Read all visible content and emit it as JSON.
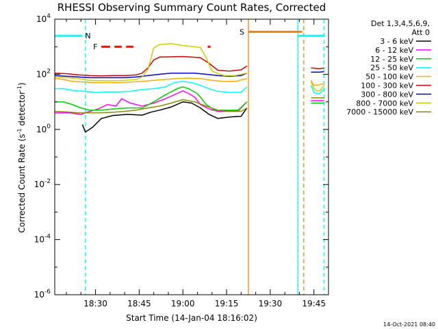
{
  "chart_data": {
    "type": "line",
    "title": "RHESSI Observing Summary Count Rates, Corrected",
    "xlabel": "Start Time (14-Jan-04 18:16:02)",
    "ylabel": "Corrected Count Rate (s⁻¹ detector⁻¹)",
    "ylabel_parts": [
      "Corrected Count Rate (s",
      "-1",
      " detector",
      "-1",
      ")"
    ],
    "x_unit": "minutes after 18:16:02 UT",
    "xlim": [
      0,
      94
    ],
    "ylim": [
      1e-06,
      10000.0
    ],
    "y_scale": "log",
    "x_ticks": [
      {
        "value": 14,
        "label": "18:30"
      },
      {
        "value": 29,
        "label": "18:45"
      },
      {
        "value": 44,
        "label": "19:00"
      },
      {
        "value": 59,
        "label": "19:15"
      },
      {
        "value": 74,
        "label": "19:30"
      },
      {
        "value": 89,
        "label": "19:45"
      }
    ],
    "y_ticks": [
      {
        "value": 10000.0,
        "base": "10",
        "exp": "4"
      },
      {
        "value": 100.0,
        "base": "10",
        "exp": "2"
      },
      {
        "value": 1.0,
        "base": "10",
        "exp": "0"
      },
      {
        "value": 0.01,
        "base": "10",
        "exp": "-2"
      },
      {
        "value": 0.0001,
        "base": "10",
        "exp": "-4"
      },
      {
        "value": 1e-06,
        "base": "10",
        "exp": "-6"
      }
    ],
    "legend_header": [
      "Det 1,3,4,5,6,9,",
      "Att 0"
    ],
    "legend_position": "right",
    "series": [
      {
        "name": "3 - 6 keV",
        "color": "#000000",
        "segments": [
          [
            [
              9.5,
              1.5
            ],
            [
              10.5,
              0.8
            ],
            [
              13,
              1.2
            ],
            [
              16,
              2.5
            ],
            [
              20,
              3.2
            ],
            [
              25,
              3.5
            ],
            [
              30,
              3.3
            ],
            [
              33,
              4.2
            ],
            [
              36,
              5
            ],
            [
              40,
              6.5
            ],
            [
              44,
              10
            ],
            [
              47,
              9
            ],
            [
              50,
              6
            ],
            [
              53,
              3.5
            ],
            [
              56,
              2.5
            ],
            [
              60,
              2.8
            ],
            [
              64,
              3
            ],
            [
              66,
              6
            ]
          ]
        ]
      },
      {
        "name": "6 - 12 keV",
        "color": "#ff00ff",
        "segments": [
          [
            [
              0,
              4
            ],
            [
              5,
              4
            ],
            [
              9,
              3.5
            ],
            [
              12,
              4.5
            ],
            [
              15,
              5.5
            ],
            [
              18,
              8
            ],
            [
              21,
              7
            ],
            [
              23,
              13
            ],
            [
              26,
              9
            ],
            [
              30,
              7
            ],
            [
              34,
              9
            ],
            [
              38,
              13
            ],
            [
              42,
              20
            ],
            [
              44,
              25
            ],
            [
              46,
              20
            ],
            [
              48,
              15
            ],
            [
              50,
              8
            ],
            [
              53,
              5.5
            ],
            [
              56,
              4.5
            ],
            [
              60,
              4.5
            ],
            [
              63,
              4.7
            ],
            [
              66,
              10
            ]
          ],
          [
            [
              88,
              11
            ],
            [
              91,
              11
            ],
            [
              92.5,
              11
            ]
          ]
        ]
      },
      {
        "name": "12 - 25 keV",
        "color": "#00cc00",
        "segments": [
          [
            [
              0,
              10
            ],
            [
              3,
              10
            ],
            [
              6,
              8
            ],
            [
              9,
              6
            ],
            [
              12,
              5
            ],
            [
              16,
              5
            ],
            [
              20,
              5.5
            ],
            [
              25,
              6
            ],
            [
              30,
              6
            ],
            [
              34,
              10
            ],
            [
              38,
              18
            ],
            [
              42,
              30
            ],
            [
              44,
              35
            ],
            [
              46,
              30
            ],
            [
              49,
              20
            ],
            [
              52,
              8
            ],
            [
              55,
              5
            ],
            [
              59,
              5
            ],
            [
              63,
              5
            ],
            [
              66,
              10
            ]
          ],
          [
            [
              88,
              9
            ],
            [
              91,
              9
            ],
            [
              92.5,
              9
            ]
          ]
        ]
      },
      {
        "name": "25 - 50 keV",
        "color": "#00ffff",
        "segments": [
          [
            [
              0,
              30
            ],
            [
              3,
              30
            ],
            [
              6,
              26
            ],
            [
              10,
              24
            ],
            [
              14,
              22
            ],
            [
              18,
              23
            ],
            [
              22,
              23
            ],
            [
              26,
              24
            ],
            [
              30,
              28
            ],
            [
              34,
              30
            ],
            [
              38,
              35
            ],
            [
              41,
              50
            ],
            [
              44,
              55
            ],
            [
              47,
              50
            ],
            [
              50,
              40
            ],
            [
              53,
              30
            ],
            [
              56,
              24
            ],
            [
              60,
              22
            ],
            [
              64,
              22
            ],
            [
              66,
              35
            ]
          ],
          [
            [
              88,
              40
            ],
            [
              89,
              22
            ],
            [
              90,
              20
            ],
            [
              91,
              20
            ],
            [
              92.5,
              30
            ]
          ]
        ]
      },
      {
        "name": "50 - 100 keV",
        "color": "#ffaa00",
        "segments": [
          [
            [
              0,
              70
            ],
            [
              3,
              65
            ],
            [
              6,
              55
            ],
            [
              10,
              52
            ],
            [
              14,
              50
            ],
            [
              18,
              50
            ],
            [
              22,
              50
            ],
            [
              26,
              52
            ],
            [
              30,
              55
            ],
            [
              34,
              60
            ],
            [
              38,
              65
            ],
            [
              42,
              70
            ],
            [
              46,
              72
            ],
            [
              50,
              70
            ],
            [
              54,
              60
            ],
            [
              58,
              55
            ],
            [
              62,
              55
            ],
            [
              66,
              70
            ]
          ],
          [
            [
              88,
              60
            ],
            [
              89,
              40
            ],
            [
              90,
              40
            ],
            [
              92.5,
              45
            ]
          ]
        ]
      },
      {
        "name": "100 - 300 keV",
        "color": "#cc0000",
        "segments": [
          [
            [
              0,
              110
            ],
            [
              4,
              105
            ],
            [
              8,
              95
            ],
            [
              12,
              90
            ],
            [
              16,
              88
            ],
            [
              20,
              90
            ],
            [
              24,
              90
            ],
            [
              28,
              95
            ],
            [
              30,
              110
            ],
            [
              32,
              170
            ],
            [
              34,
              330
            ],
            [
              36,
              420
            ],
            [
              40,
              430
            ],
            [
              44,
              440
            ],
            [
              47,
              420
            ],
            [
              50,
              400
            ],
            [
              53,
              250
            ],
            [
              56,
              140
            ],
            [
              60,
              130
            ],
            [
              64,
              145
            ],
            [
              66,
              200
            ]
          ],
          [
            [
              88,
              170
            ],
            [
              91,
              160
            ],
            [
              92.5,
              170
            ]
          ]
        ]
      },
      {
        "name": "300 - 800 keV",
        "color": "#0000cc",
        "segments": [
          [
            [
              0,
              90
            ],
            [
              4,
              85
            ],
            [
              8,
              80
            ],
            [
              12,
              75
            ],
            [
              16,
              75
            ],
            [
              20,
              75
            ],
            [
              24,
              75
            ],
            [
              28,
              80
            ],
            [
              32,
              90
            ],
            [
              36,
              100
            ],
            [
              40,
              110
            ],
            [
              44,
              110
            ],
            [
              48,
              110
            ],
            [
              52,
              100
            ],
            [
              56,
              90
            ],
            [
              60,
              85
            ],
            [
              64,
              90
            ],
            [
              66,
              110
            ]
          ],
          [
            [
              88,
              120
            ],
            [
              91,
              120
            ],
            [
              92.5,
              125
            ]
          ]
        ]
      },
      {
        "name": "800 - 7000 keV",
        "color": "#cccc00",
        "segments": [
          [
            [
              0,
              80
            ],
            [
              4,
              75
            ],
            [
              8,
              70
            ],
            [
              12,
              60
            ],
            [
              16,
              58
            ],
            [
              20,
              58
            ],
            [
              24,
              60
            ],
            [
              28,
              65
            ],
            [
              30,
              80
            ],
            [
              32,
              150
            ],
            [
              34,
              900
            ],
            [
              36,
              1200
            ],
            [
              40,
              1300
            ],
            [
              44,
              1100
            ],
            [
              48,
              1000
            ],
            [
              50,
              950
            ],
            [
              52,
              400
            ],
            [
              54,
              130
            ],
            [
              58,
              90
            ],
            [
              62,
              90
            ],
            [
              66,
              110
            ]
          ],
          [
            [
              88,
              55
            ],
            [
              89,
              30
            ],
            [
              90,
              25
            ],
            [
              91,
              25
            ],
            [
              92.5,
              40
            ]
          ]
        ]
      },
      {
        "name": "7000 - 15000 keV",
        "color": "#888800",
        "segments": [
          [
            [
              0,
              4.5
            ],
            [
              4,
              4.3
            ],
            [
              8,
              4
            ],
            [
              12,
              4
            ],
            [
              16,
              4
            ],
            [
              20,
              4.2
            ],
            [
              24,
              4.5
            ],
            [
              28,
              5
            ],
            [
              32,
              6
            ],
            [
              36,
              7
            ],
            [
              40,
              9
            ],
            [
              44,
              12
            ],
            [
              48,
              10
            ],
            [
              52,
              7
            ],
            [
              56,
              5
            ],
            [
              60,
              4.5
            ],
            [
              64,
              4.5
            ],
            [
              66,
              6
            ]
          ],
          [
            [
              88,
              14
            ],
            [
              91,
              14
            ],
            [
              92.5,
              14
            ]
          ]
        ]
      }
    ],
    "flag_bars": [
      {
        "label": "N",
        "color": "#00ffff",
        "y": 2500,
        "segments": [
          [
            0,
            9.5
          ],
          [
            83.5,
            92.5
          ]
        ]
      },
      {
        "label": "F",
        "color": "#ff0000",
        "y": 1000,
        "segments": [
          [
            16,
            19
          ],
          [
            20.5,
            23
          ],
          [
            24.5,
            27
          ],
          [
            52.5,
            53.5
          ]
        ]
      },
      {
        "label": "S",
        "color": "#ff8000",
        "y": 3500,
        "segments": [
          [
            66.5,
            85
          ]
        ]
      }
    ],
    "vertical_markers": [
      {
        "x": 10.5,
        "color": "#00ffff",
        "style": "dashed"
      },
      {
        "x": 66.5,
        "color": "#ff8000",
        "style": "solid"
      },
      {
        "x": 83.5,
        "color": "#00ffff",
        "style": "solid"
      },
      {
        "x": 85.5,
        "color": "#ff8000",
        "style": "dashed"
      },
      {
        "x": 92.5,
        "color": "#00ffff",
        "style": "dashed"
      }
    ],
    "grid": false
  },
  "footer": {
    "timestamp": "14-Oct-2021 08:40"
  }
}
